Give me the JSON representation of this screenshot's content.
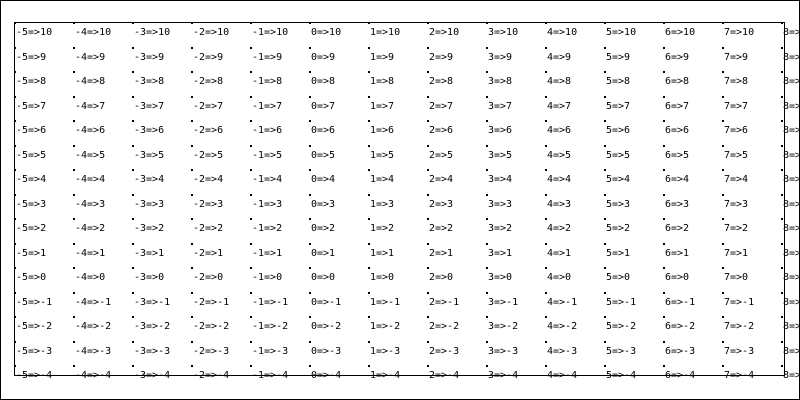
{
  "grid": {
    "columns": [
      -5,
      -4,
      -3,
      -2,
      -1,
      0,
      1,
      2,
      3,
      4,
      5,
      6,
      7,
      8
    ],
    "rows": [
      10,
      9,
      8,
      7,
      6,
      5,
      4,
      3,
      2,
      1,
      0,
      -1,
      -2,
      -3,
      -4
    ],
    "separator": "=>",
    "text_color": "#000000",
    "line_color": "#000000"
  }
}
